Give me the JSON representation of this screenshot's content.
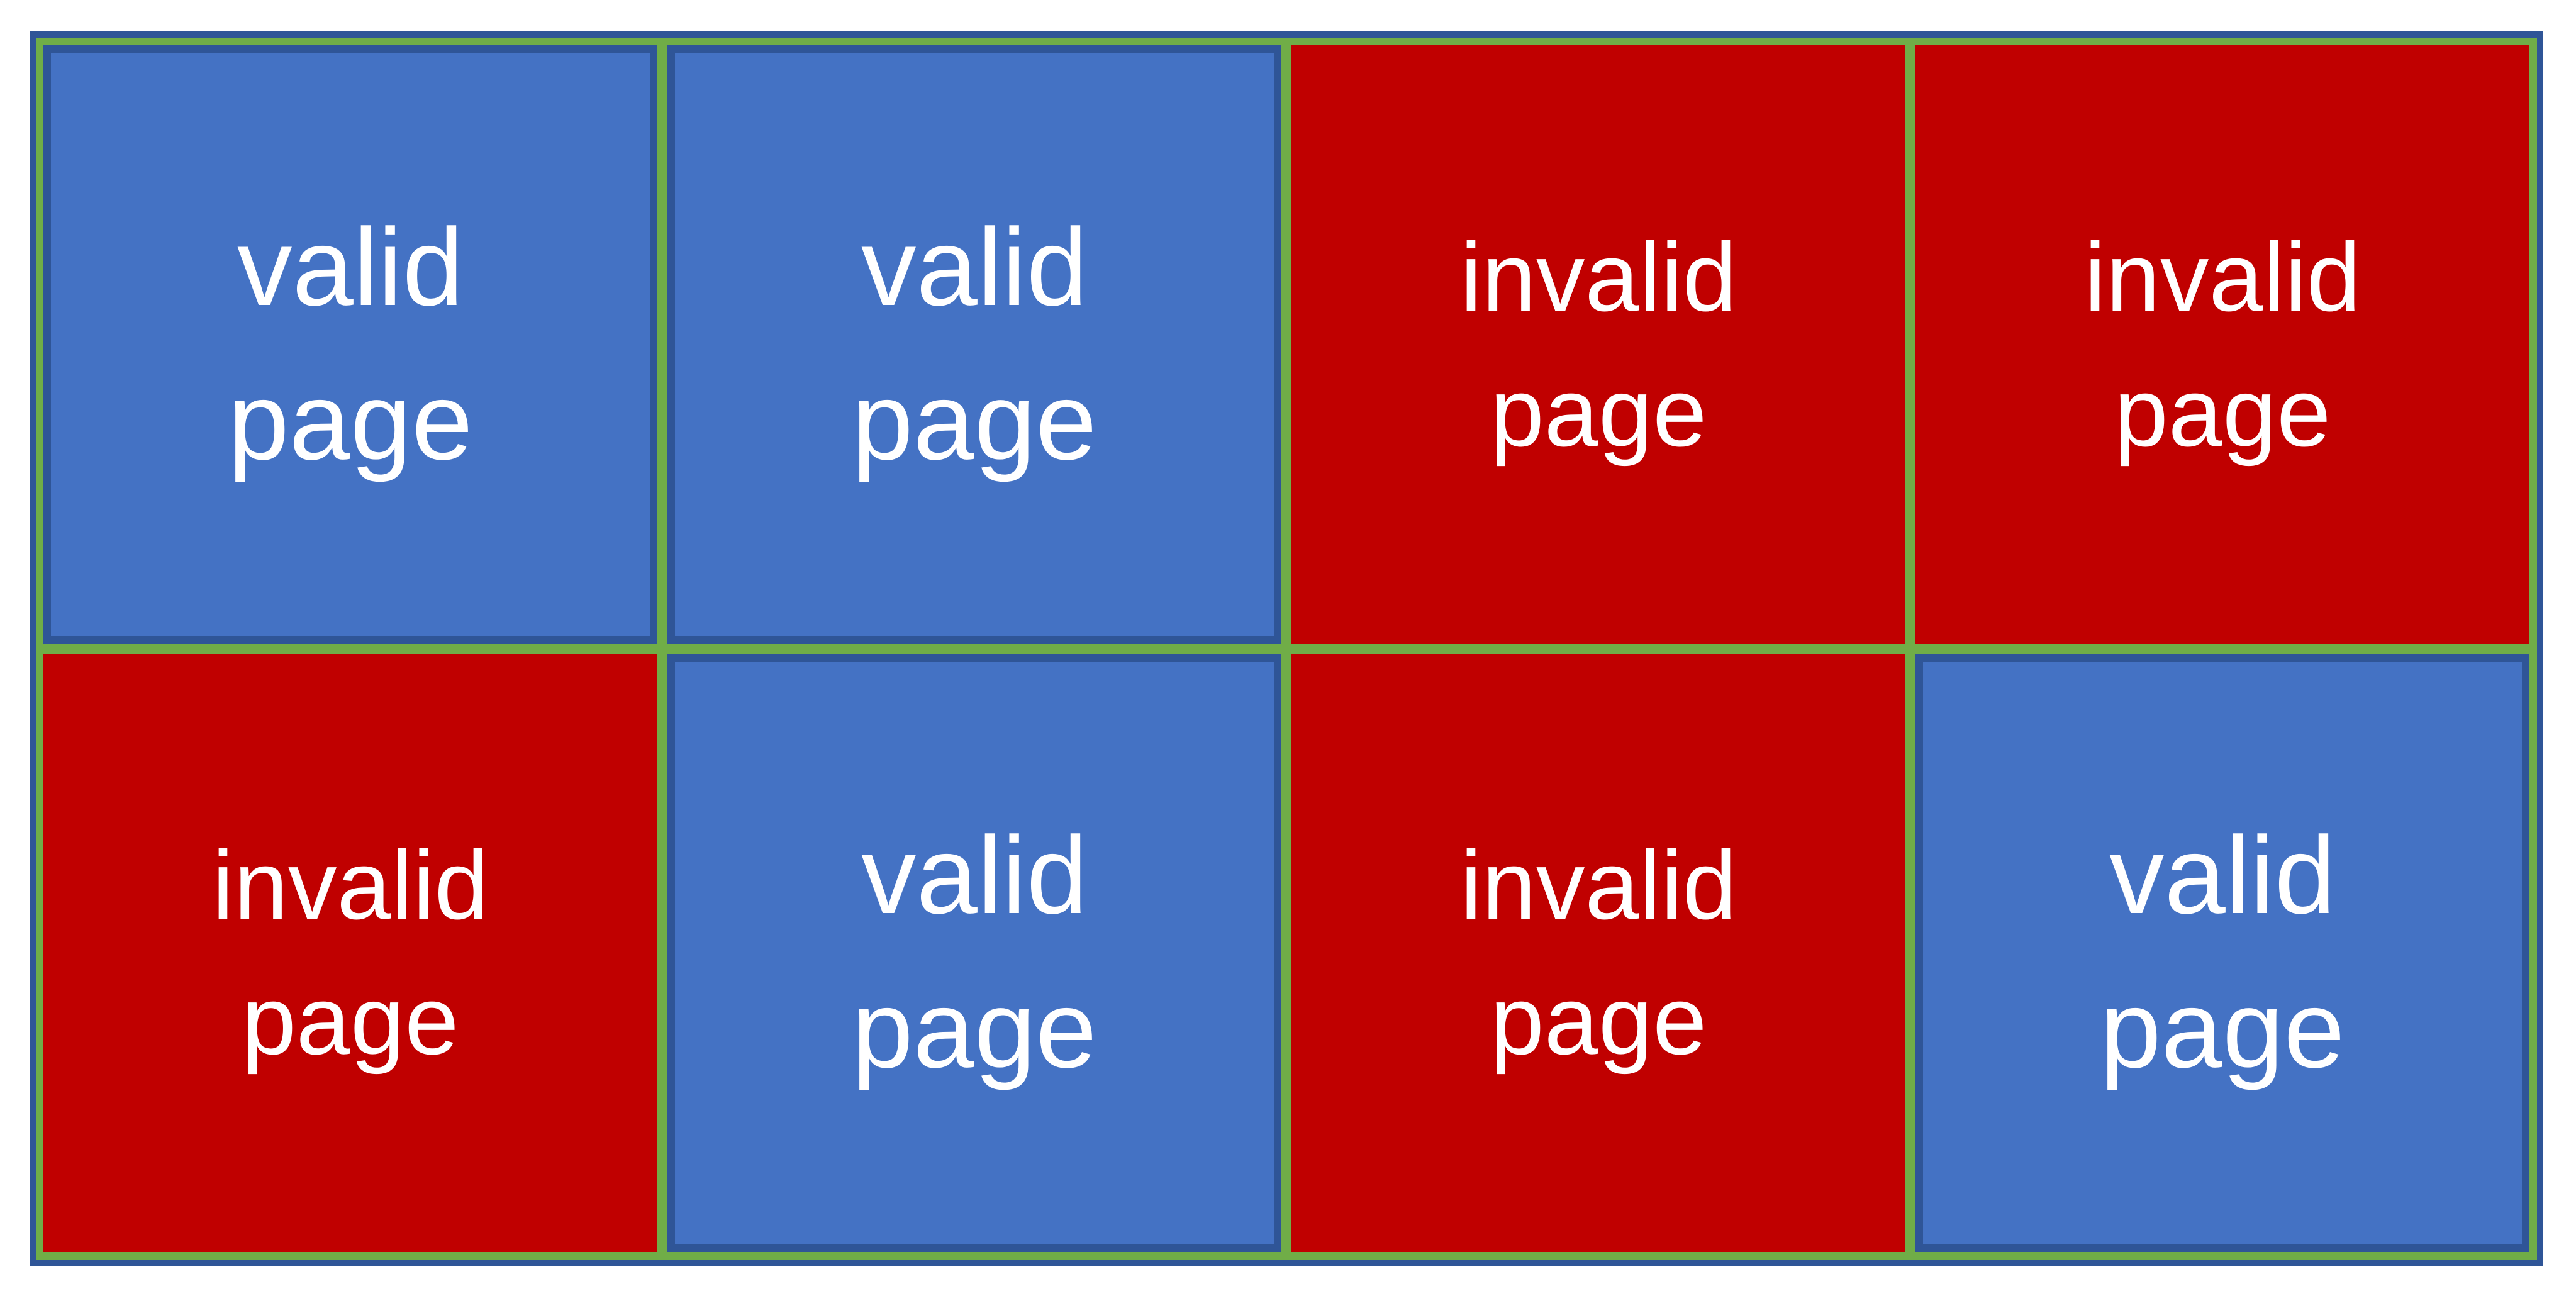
{
  "colors": {
    "valid": "#4472c4",
    "invalid": "#c00000",
    "outer_border": "#2f5597",
    "separator": "#70ad47",
    "text": "#ffffff"
  },
  "cells": [
    {
      "status": "valid",
      "line1": "valid",
      "line2": "page"
    },
    {
      "status": "valid",
      "line1": "valid",
      "line2": "page"
    },
    {
      "status": "invalid",
      "line1": "invalid",
      "line2": "page"
    },
    {
      "status": "invalid",
      "line1": "invalid",
      "line2": "page"
    },
    {
      "status": "invalid",
      "line1": "invalid",
      "line2": "page"
    },
    {
      "status": "valid",
      "line1": "valid",
      "line2": "page"
    },
    {
      "status": "invalid",
      "line1": "invalid",
      "line2": "page"
    },
    {
      "status": "valid",
      "line1": "valid",
      "line2": "page"
    }
  ]
}
